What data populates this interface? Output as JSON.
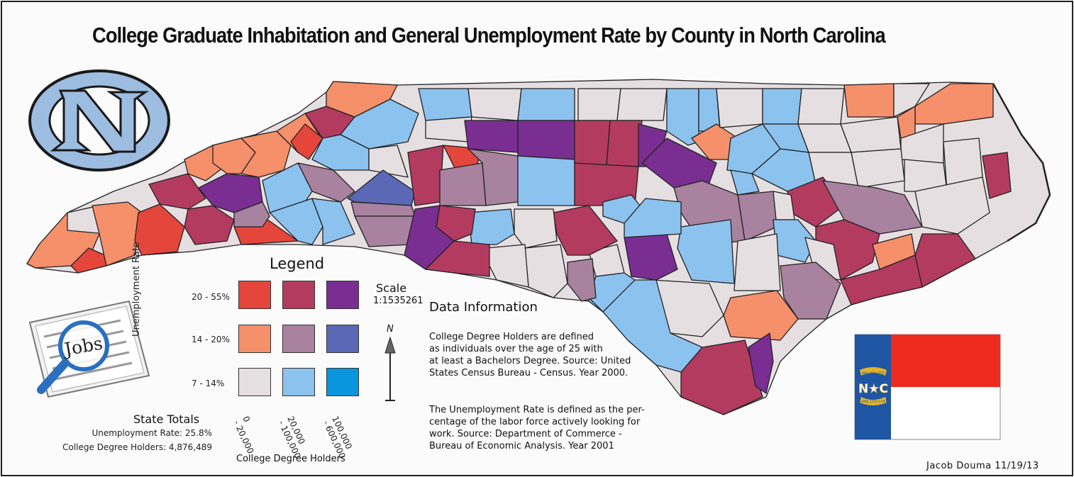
{
  "title": "College Graduate Inhabitation and General Unemployment Rate by County in North Carolina",
  "legend": {
    "title": "Legend",
    "y_axis_label": "Unemployment Rate",
    "x_axis_label": "College Degree Holders",
    "rows": [
      "20 - 55%",
      "14 - 20%",
      "7 - 14%"
    ],
    "cols": [
      {
        "line1": "0",
        "line2": "- 20,000"
      },
      {
        "line1": "20,000",
        "line2": "- 100,000"
      },
      {
        "line1": "100,000",
        "line2": "- 600,000"
      }
    ],
    "colors": [
      [
        "#e4463c",
        "#b33b60",
        "#7a2e92"
      ],
      [
        "#f5906b",
        "#a8829e",
        "#5b68b6"
      ],
      [
        "#e6dfe1",
        "#8cc2ee",
        "#0a95df"
      ]
    ]
  },
  "scale": {
    "label": "Scale",
    "value": "1:1535261",
    "north": "N"
  },
  "data_info": {
    "heading": "Data Information",
    "para1_lines": [
      "College Degree Holders are defined",
      "as individuals over the age of 25 with",
      "at least a Bachelors Degree. Source: United",
      "States Census Bureau -  Census. Year 2000."
    ],
    "para2_lines": [
      "The Unemployment Rate is defined as the per-",
      "centage of the labor force actively looking for",
      "work. Source: Department of Commerce -",
      "Bureau of Economic Analysis. Year 2001"
    ]
  },
  "state_totals": {
    "heading": "State Totals",
    "unemployment": "Unemployment Rate: 25.8%",
    "degree_holders": "College Degree Holders: 4,876,489"
  },
  "author": "Jacob Douma 11/19/13",
  "logo": {
    "text": "NC"
  },
  "jobs_icon": {
    "text": "Jobs"
  },
  "flag": {
    "letters": "N★C",
    "ribbon_top": "MAY 20TH 1775",
    "ribbon_bottom": "APRIL 12TH 1776",
    "colors": {
      "blue": "#1f56a4",
      "red": "#ee2a1f",
      "white": "#ffffff",
      "gold": "#e2b32a"
    }
  }
}
